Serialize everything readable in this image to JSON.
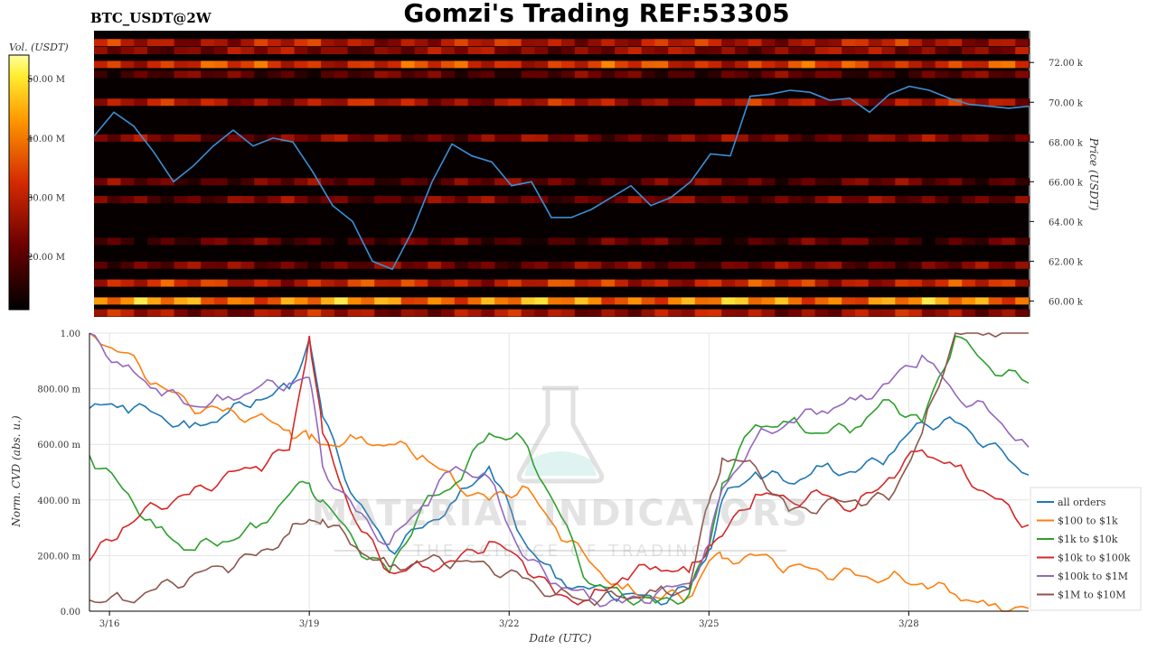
{
  "header": {
    "pair": "BTC_USDT@2W",
    "title": "Gomzi's Trading REF:53305"
  },
  "colorbar": {
    "label": "Vol. (USDT)",
    "ticks": [
      "20.00 M",
      "30.00 M",
      "40.00 M",
      "50.00 M"
    ],
    "tick_values": [
      20,
      30,
      40,
      50
    ],
    "range": [
      11,
      54
    ]
  },
  "watermark": {
    "brand": "MATERIAL INDICATORS",
    "tagline": "THE SCIENCE OF TRADING"
  },
  "colors": {
    "price_line": "#3b8fd6",
    "heatmap_bg": "#060000",
    "series": [
      "#1f77b4",
      "#ff7f0e",
      "#2ca02c",
      "#d62728",
      "#9467bd",
      "#8c564b"
    ]
  },
  "chart_data": [
    {
      "type": "heatmap",
      "ylabel": "Price (USDT)",
      "yticks": [
        "60.00 k",
        "62.00 k",
        "64.00 k",
        "66.00 k",
        "68.00 k",
        "70.00 k",
        "72.00 k"
      ],
      "ytick_values": [
        60,
        62,
        64,
        66,
        68,
        70,
        72
      ],
      "ylim": [
        59.2,
        73.6
      ],
      "xlim": [
        0,
        14.1
      ],
      "price_series": {
        "x": [
          0,
          0.3,
          0.6,
          0.9,
          1.2,
          1.5,
          1.8,
          2.1,
          2.4,
          2.7,
          3.0,
          3.3,
          3.6,
          3.9,
          4.2,
          4.5,
          4.8,
          5.1,
          5.4,
          5.7,
          6.0,
          6.3,
          6.6,
          6.9,
          7.2,
          7.5,
          7.8,
          8.1,
          8.4,
          8.7,
          9.0,
          9.3,
          9.6,
          9.9,
          10.2,
          10.5,
          10.8,
          11.1,
          11.4,
          11.7,
          12.0,
          12.3,
          12.6,
          12.9,
          13.2,
          13.5,
          13.8,
          14.1
        ],
        "y": [
          68.3,
          69.5,
          68.8,
          67.5,
          66.0,
          66.8,
          67.8,
          68.6,
          67.8,
          68.2,
          68.0,
          66.5,
          64.8,
          64.0,
          62.0,
          61.6,
          63.5,
          66.0,
          67.9,
          67.3,
          67.0,
          65.8,
          66.0,
          64.2,
          64.2,
          64.6,
          65.2,
          65.8,
          64.8,
          65.2,
          66.0,
          67.4,
          67.3,
          70.3,
          70.4,
          70.6,
          70.5,
          70.1,
          70.2,
          69.5,
          70.4,
          70.8,
          70.6,
          70.2,
          69.9,
          69.8,
          69.7,
          69.8
        ]
      },
      "bands": [
        {
          "price": 73.0,
          "intensity": 0.45
        },
        {
          "price": 72.6,
          "intensity": 0.35
        },
        {
          "price": 71.9,
          "intensity": 0.55
        },
        {
          "price": 71.4,
          "intensity": 0.22
        },
        {
          "price": 70.0,
          "intensity": 0.42
        },
        {
          "price": 68.2,
          "intensity": 0.3
        },
        {
          "price": 66.0,
          "intensity": 0.25
        },
        {
          "price": 65.1,
          "intensity": 0.28
        },
        {
          "price": 63.0,
          "intensity": 0.2
        },
        {
          "price": 61.8,
          "intensity": 0.28
        },
        {
          "price": 60.9,
          "intensity": 0.5
        },
        {
          "price": 60.0,
          "intensity": 0.72
        },
        {
          "price": 59.4,
          "intensity": 0.4
        }
      ]
    },
    {
      "type": "line",
      "xlabel": "Date (UTC)",
      "ylabel": "Norm. CVD (abs. u.)",
      "x_ticks": [
        "3/16",
        "3/19",
        "3/22",
        "3/25",
        "3/28"
      ],
      "x_tick_values": [
        0.3,
        3.3,
        6.3,
        9.3,
        12.3
      ],
      "yticks": [
        "0.00",
        "200.00 m",
        "400.00 m",
        "600.00 m",
        "800.00 m",
        "1.00"
      ],
      "ytick_values": [
        0,
        0.2,
        0.4,
        0.6,
        0.8,
        1.0
      ],
      "xlim": [
        0,
        14.1
      ],
      "ylim": [
        0,
        1.0
      ],
      "grid": true,
      "legend_position": "lower-right",
      "x": [
        0,
        0.5,
        1.0,
        1.5,
        2.0,
        2.5,
        3.0,
        3.3,
        3.5,
        4.0,
        4.5,
        5.0,
        5.5,
        6.0,
        6.5,
        7.0,
        7.5,
        8.0,
        8.5,
        9.0,
        9.3,
        9.5,
        10.0,
        10.5,
        11.0,
        11.5,
        12.0,
        12.5,
        13.0,
        13.5,
        14.1
      ],
      "series": [
        {
          "name": "all orders",
          "values": [
            0.73,
            0.74,
            0.71,
            0.66,
            0.7,
            0.76,
            0.8,
            0.98,
            0.7,
            0.4,
            0.22,
            0.3,
            0.4,
            0.52,
            0.26,
            0.12,
            0.08,
            0.06,
            0.04,
            0.08,
            0.22,
            0.4,
            0.5,
            0.46,
            0.52,
            0.5,
            0.56,
            0.68,
            0.68,
            0.6,
            0.49
          ]
        },
        {
          "name": "$100 to $1k",
          "values": [
            1.0,
            0.93,
            0.82,
            0.74,
            0.72,
            0.7,
            0.65,
            0.62,
            0.6,
            0.62,
            0.6,
            0.56,
            0.46,
            0.4,
            0.45,
            0.3,
            0.18,
            0.08,
            0.05,
            0.05,
            0.18,
            0.19,
            0.2,
            0.16,
            0.14,
            0.13,
            0.12,
            0.1,
            0.06,
            0.02,
            0.01
          ]
        },
        {
          "name": "$1k to $10k",
          "values": [
            0.56,
            0.44,
            0.3,
            0.22,
            0.25,
            0.3,
            0.42,
            0.46,
            0.4,
            0.24,
            0.14,
            0.38,
            0.46,
            0.64,
            0.62,
            0.38,
            0.1,
            0.06,
            0.03,
            0.06,
            0.23,
            0.46,
            0.67,
            0.68,
            0.64,
            0.66,
            0.76,
            0.68,
            0.99,
            0.88,
            0.82
          ]
        },
        {
          "name": "$10k to $100k",
          "values": [
            0.18,
            0.3,
            0.38,
            0.42,
            0.48,
            0.52,
            0.58,
            0.99,
            0.64,
            0.32,
            0.14,
            0.16,
            0.18,
            0.25,
            0.18,
            0.06,
            0.04,
            0.12,
            0.16,
            0.14,
            0.24,
            0.27,
            0.42,
            0.4,
            0.42,
            0.37,
            0.48,
            0.58,
            0.52,
            0.42,
            0.31
          ]
        },
        {
          "name": "$100k to $1M",
          "values": [
            1.0,
            0.88,
            0.8,
            0.74,
            0.76,
            0.8,
            0.82,
            0.84,
            0.52,
            0.36,
            0.24,
            0.38,
            0.52,
            0.48,
            0.2,
            0.1,
            0.05,
            0.03,
            0.06,
            0.1,
            0.24,
            0.44,
            0.62,
            0.68,
            0.72,
            0.76,
            0.82,
            0.92,
            0.78,
            0.72,
            0.59
          ]
        },
        {
          "name": "$1M to $10M",
          "values": [
            0.04,
            0.04,
            0.08,
            0.12,
            0.16,
            0.2,
            0.28,
            0.33,
            0.33,
            0.23,
            0.16,
            0.18,
            0.18,
            0.16,
            0.12,
            0.06,
            0.04,
            0.05,
            0.07,
            0.08,
            0.39,
            0.55,
            0.52,
            0.36,
            0.38,
            0.4,
            0.4,
            0.64,
            1.0,
            1.0,
            1.0
          ]
        }
      ]
    }
  ]
}
